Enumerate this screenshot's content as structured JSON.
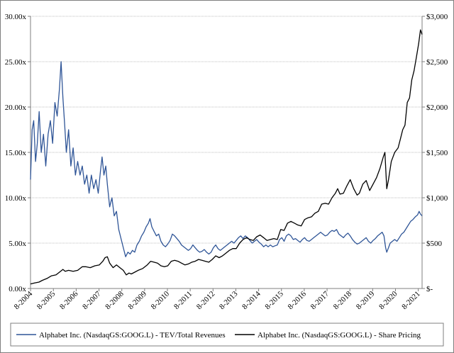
{
  "chart_data": {
    "type": "line",
    "title": "",
    "xlabel": "",
    "ylabel_left": "",
    "ylabel_right": "",
    "x_ticks": [
      "8-2004",
      "8-2005",
      "8-2006",
      "8-2007",
      "8-2008",
      "8-2009",
      "8-2010",
      "8-2011",
      "8-2012",
      "8-2013",
      "8-2014",
      "8-2015",
      "8-2016",
      "8-2017",
      "8-2018",
      "8-2019",
      "8-2020",
      "8-2021"
    ],
    "y_left_ticks": [
      "0.00x",
      "5.00x",
      "10.00x",
      "15.00x",
      "20.00x",
      "25.00x",
      "30.00x"
    ],
    "y_left_range": [
      0,
      30
    ],
    "y_right_ticks": [
      "$-",
      "$500",
      "$1,000",
      "$1,500",
      "$2,000",
      "$2,500",
      "$3,000"
    ],
    "y_right_range": [
      0,
      3000
    ],
    "x_range": [
      2004.58,
      2021.75
    ],
    "grid": "horizontal",
    "legend_position": "bottom",
    "series": [
      {
        "name": "Alphabet Inc. (NasdaqGS:GOOG.L) - TEV/Total Revenues",
        "axis": "left",
        "color": "#2f5597",
        "points": [
          [
            2004.58,
            12.0
          ],
          [
            2004.65,
            17.5
          ],
          [
            2004.72,
            18.5
          ],
          [
            2004.8,
            14.0
          ],
          [
            2004.88,
            16.0
          ],
          [
            2004.96,
            19.5
          ],
          [
            2005.05,
            15.0
          ],
          [
            2005.15,
            17.0
          ],
          [
            2005.25,
            13.5
          ],
          [
            2005.35,
            17.0
          ],
          [
            2005.45,
            18.5
          ],
          [
            2005.55,
            16.0
          ],
          [
            2005.65,
            20.5
          ],
          [
            2005.75,
            19.0
          ],
          [
            2005.85,
            22.0
          ],
          [
            2005.92,
            25.0
          ],
          [
            2006.0,
            21.0
          ],
          [
            2006.08,
            18.0
          ],
          [
            2006.15,
            15.0
          ],
          [
            2006.25,
            17.5
          ],
          [
            2006.35,
            13.5
          ],
          [
            2006.45,
            15.5
          ],
          [
            2006.55,
            12.5
          ],
          [
            2006.65,
            14.0
          ],
          [
            2006.75,
            12.5
          ],
          [
            2006.85,
            13.5
          ],
          [
            2006.95,
            11.5
          ],
          [
            2007.05,
            12.5
          ],
          [
            2007.15,
            10.5
          ],
          [
            2007.25,
            12.5
          ],
          [
            2007.35,
            11.0
          ],
          [
            2007.45,
            12.0
          ],
          [
            2007.55,
            10.5
          ],
          [
            2007.65,
            13.0
          ],
          [
            2007.72,
            14.5
          ],
          [
            2007.8,
            12.5
          ],
          [
            2007.88,
            13.5
          ],
          [
            2007.95,
            11.5
          ],
          [
            2008.05,
            9.0
          ],
          [
            2008.15,
            10.0
          ],
          [
            2008.25,
            8.0
          ],
          [
            2008.35,
            8.5
          ],
          [
            2008.45,
            6.5
          ],
          [
            2008.55,
            5.5
          ],
          [
            2008.65,
            4.5
          ],
          [
            2008.75,
            3.5
          ],
          [
            2008.85,
            4.0
          ],
          [
            2008.95,
            3.8
          ],
          [
            2009.05,
            4.2
          ],
          [
            2009.15,
            4.0
          ],
          [
            2009.25,
            4.8
          ],
          [
            2009.35,
            5.2
          ],
          [
            2009.45,
            5.8
          ],
          [
            2009.55,
            6.2
          ],
          [
            2009.65,
            6.8
          ],
          [
            2009.75,
            7.2
          ],
          [
            2009.82,
            7.7
          ],
          [
            2009.9,
            6.8
          ],
          [
            2010.0,
            6.3
          ],
          [
            2010.1,
            5.8
          ],
          [
            2010.2,
            6.0
          ],
          [
            2010.3,
            5.2
          ],
          [
            2010.4,
            4.8
          ],
          [
            2010.5,
            4.6
          ],
          [
            2010.6,
            4.9
          ],
          [
            2010.7,
            5.3
          ],
          [
            2010.8,
            6.0
          ],
          [
            2010.9,
            5.8
          ],
          [
            2011.0,
            5.5
          ],
          [
            2011.1,
            5.2
          ],
          [
            2011.2,
            4.8
          ],
          [
            2011.3,
            4.6
          ],
          [
            2011.4,
            4.4
          ],
          [
            2011.5,
            4.2
          ],
          [
            2011.6,
            4.4
          ],
          [
            2011.7,
            4.8
          ],
          [
            2011.8,
            4.5
          ],
          [
            2011.9,
            4.2
          ],
          [
            2012.0,
            4.0
          ],
          [
            2012.1,
            4.1
          ],
          [
            2012.2,
            4.3
          ],
          [
            2012.3,
            4.0
          ],
          [
            2012.4,
            3.8
          ],
          [
            2012.5,
            4.0
          ],
          [
            2012.6,
            4.5
          ],
          [
            2012.7,
            4.8
          ],
          [
            2012.8,
            4.4
          ],
          [
            2012.9,
            4.2
          ],
          [
            2013.0,
            4.4
          ],
          [
            2013.1,
            4.6
          ],
          [
            2013.2,
            4.8
          ],
          [
            2013.3,
            5.0
          ],
          [
            2013.4,
            5.2
          ],
          [
            2013.5,
            5.0
          ],
          [
            2013.6,
            5.3
          ],
          [
            2013.7,
            5.6
          ],
          [
            2013.8,
            5.8
          ],
          [
            2013.9,
            5.5
          ],
          [
            2014.0,
            5.8
          ],
          [
            2014.1,
            5.6
          ],
          [
            2014.2,
            5.3
          ],
          [
            2014.3,
            5.0
          ],
          [
            2014.4,
            5.2
          ],
          [
            2014.5,
            5.4
          ],
          [
            2014.6,
            5.1
          ],
          [
            2014.7,
            4.9
          ],
          [
            2014.8,
            4.6
          ],
          [
            2014.9,
            4.8
          ],
          [
            2015.0,
            4.6
          ],
          [
            2015.1,
            4.8
          ],
          [
            2015.2,
            4.6
          ],
          [
            2015.3,
            4.7
          ],
          [
            2015.4,
            4.8
          ],
          [
            2015.5,
            5.4
          ],
          [
            2015.6,
            5.6
          ],
          [
            2015.7,
            5.2
          ],
          [
            2015.8,
            5.8
          ],
          [
            2015.9,
            6.0
          ],
          [
            2016.0,
            5.8
          ],
          [
            2016.1,
            5.4
          ],
          [
            2016.2,
            5.5
          ],
          [
            2016.3,
            5.3
          ],
          [
            2016.4,
            5.1
          ],
          [
            2016.5,
            5.4
          ],
          [
            2016.6,
            5.6
          ],
          [
            2016.7,
            5.3
          ],
          [
            2016.8,
            5.2
          ],
          [
            2016.9,
            5.4
          ],
          [
            2017.0,
            5.6
          ],
          [
            2017.1,
            5.8
          ],
          [
            2017.2,
            6.0
          ],
          [
            2017.3,
            6.2
          ],
          [
            2017.4,
            6.0
          ],
          [
            2017.5,
            5.8
          ],
          [
            2017.6,
            5.9
          ],
          [
            2017.7,
            6.2
          ],
          [
            2017.8,
            6.4
          ],
          [
            2017.9,
            6.3
          ],
          [
            2018.0,
            6.5
          ],
          [
            2018.1,
            6.0
          ],
          [
            2018.2,
            5.8
          ],
          [
            2018.3,
            5.6
          ],
          [
            2018.4,
            5.9
          ],
          [
            2018.5,
            6.1
          ],
          [
            2018.6,
            5.8
          ],
          [
            2018.7,
            5.4
          ],
          [
            2018.8,
            5.1
          ],
          [
            2018.9,
            4.9
          ],
          [
            2019.0,
            5.0
          ],
          [
            2019.1,
            5.2
          ],
          [
            2019.2,
            5.4
          ],
          [
            2019.3,
            5.6
          ],
          [
            2019.4,
            5.2
          ],
          [
            2019.5,
            5.0
          ],
          [
            2019.6,
            5.3
          ],
          [
            2019.7,
            5.5
          ],
          [
            2019.8,
            5.8
          ],
          [
            2019.9,
            6.0
          ],
          [
            2020.0,
            6.2
          ],
          [
            2020.08,
            5.8
          ],
          [
            2020.15,
            4.5
          ],
          [
            2020.2,
            4.0
          ],
          [
            2020.28,
            4.5
          ],
          [
            2020.35,
            5.0
          ],
          [
            2020.45,
            5.2
          ],
          [
            2020.55,
            5.4
          ],
          [
            2020.65,
            5.2
          ],
          [
            2020.75,
            5.6
          ],
          [
            2020.85,
            6.0
          ],
          [
            2020.95,
            6.2
          ],
          [
            2021.05,
            6.6
          ],
          [
            2021.15,
            7.0
          ],
          [
            2021.25,
            7.4
          ],
          [
            2021.35,
            7.6
          ],
          [
            2021.45,
            7.9
          ],
          [
            2021.55,
            8.1
          ],
          [
            2021.62,
            8.5
          ],
          [
            2021.68,
            8.2
          ],
          [
            2021.75,
            8.0
          ]
        ]
      },
      {
        "name": "Alphabet Inc. (NasdaqGS:GOOG.L) - Share Pricing",
        "axis": "right",
        "color": "#000000",
        "points": [
          [
            2004.58,
            50
          ],
          [
            2004.75,
            60
          ],
          [
            2004.95,
            70
          ],
          [
            2005.1,
            90
          ],
          [
            2005.3,
            110
          ],
          [
            2005.5,
            140
          ],
          [
            2005.7,
            150
          ],
          [
            2005.85,
            180
          ],
          [
            2006.0,
            210
          ],
          [
            2006.1,
            190
          ],
          [
            2006.25,
            200
          ],
          [
            2006.45,
            190
          ],
          [
            2006.65,
            200
          ],
          [
            2006.85,
            240
          ],
          [
            2007.0,
            240
          ],
          [
            2007.2,
            230
          ],
          [
            2007.4,
            250
          ],
          [
            2007.6,
            260
          ],
          [
            2007.75,
            300
          ],
          [
            2007.85,
            340
          ],
          [
            2007.95,
            350
          ],
          [
            2008.05,
            280
          ],
          [
            2008.2,
            230
          ],
          [
            2008.35,
            260
          ],
          [
            2008.5,
            230
          ],
          [
            2008.65,
            200
          ],
          [
            2008.78,
            150
          ],
          [
            2008.9,
            170
          ],
          [
            2009.0,
            160
          ],
          [
            2009.15,
            180
          ],
          [
            2009.3,
            200
          ],
          [
            2009.5,
            220
          ],
          [
            2009.7,
            260
          ],
          [
            2009.85,
            300
          ],
          [
            2010.0,
            290
          ],
          [
            2010.15,
            280
          ],
          [
            2010.3,
            250
          ],
          [
            2010.45,
            240
          ],
          [
            2010.6,
            250
          ],
          [
            2010.75,
            300
          ],
          [
            2010.9,
            310
          ],
          [
            2011.05,
            300
          ],
          [
            2011.2,
            280
          ],
          [
            2011.35,
            260
          ],
          [
            2011.5,
            270
          ],
          [
            2011.65,
            290
          ],
          [
            2011.8,
            300
          ],
          [
            2011.95,
            320
          ],
          [
            2012.1,
            310
          ],
          [
            2012.25,
            300
          ],
          [
            2012.4,
            290
          ],
          [
            2012.55,
            320
          ],
          [
            2012.7,
            360
          ],
          [
            2012.85,
            340
          ],
          [
            2013.0,
            360
          ],
          [
            2013.15,
            390
          ],
          [
            2013.3,
            420
          ],
          [
            2013.45,
            440
          ],
          [
            2013.6,
            440
          ],
          [
            2013.75,
            500
          ],
          [
            2013.9,
            540
          ],
          [
            2014.05,
            560
          ],
          [
            2014.2,
            540
          ],
          [
            2014.35,
            530
          ],
          [
            2014.5,
            570
          ],
          [
            2014.65,
            590
          ],
          [
            2014.8,
            560
          ],
          [
            2014.95,
            530
          ],
          [
            2015.1,
            540
          ],
          [
            2015.25,
            550
          ],
          [
            2015.4,
            540
          ],
          [
            2015.55,
            650
          ],
          [
            2015.7,
            640
          ],
          [
            2015.85,
            720
          ],
          [
            2016.0,
            740
          ],
          [
            2016.15,
            720
          ],
          [
            2016.3,
            700
          ],
          [
            2016.45,
            690
          ],
          [
            2016.6,
            760
          ],
          [
            2016.75,
            780
          ],
          [
            2016.9,
            790
          ],
          [
            2017.05,
            830
          ],
          [
            2017.2,
            850
          ],
          [
            2017.35,
            930
          ],
          [
            2017.5,
            940
          ],
          [
            2017.65,
            930
          ],
          [
            2017.8,
            1000
          ],
          [
            2017.95,
            1050
          ],
          [
            2018.05,
            1100
          ],
          [
            2018.15,
            1040
          ],
          [
            2018.3,
            1050
          ],
          [
            2018.45,
            1130
          ],
          [
            2018.6,
            1200
          ],
          [
            2018.75,
            1100
          ],
          [
            2018.9,
            1030
          ],
          [
            2019.0,
            1050
          ],
          [
            2019.15,
            1150
          ],
          [
            2019.3,
            1190
          ],
          [
            2019.45,
            1080
          ],
          [
            2019.6,
            1150
          ],
          [
            2019.75,
            1220
          ],
          [
            2019.9,
            1320
          ],
          [
            2020.05,
            1450
          ],
          [
            2020.12,
            1500
          ],
          [
            2020.2,
            1100
          ],
          [
            2020.28,
            1200
          ],
          [
            2020.4,
            1400
          ],
          [
            2020.55,
            1500
          ],
          [
            2020.7,
            1550
          ],
          [
            2020.8,
            1650
          ],
          [
            2020.9,
            1750
          ],
          [
            2021.0,
            1800
          ],
          [
            2021.1,
            2050
          ],
          [
            2021.2,
            2100
          ],
          [
            2021.3,
            2300
          ],
          [
            2021.4,
            2400
          ],
          [
            2021.5,
            2550
          ],
          [
            2021.6,
            2700
          ],
          [
            2021.68,
            2850
          ],
          [
            2021.75,
            2800
          ]
        ]
      }
    ]
  }
}
